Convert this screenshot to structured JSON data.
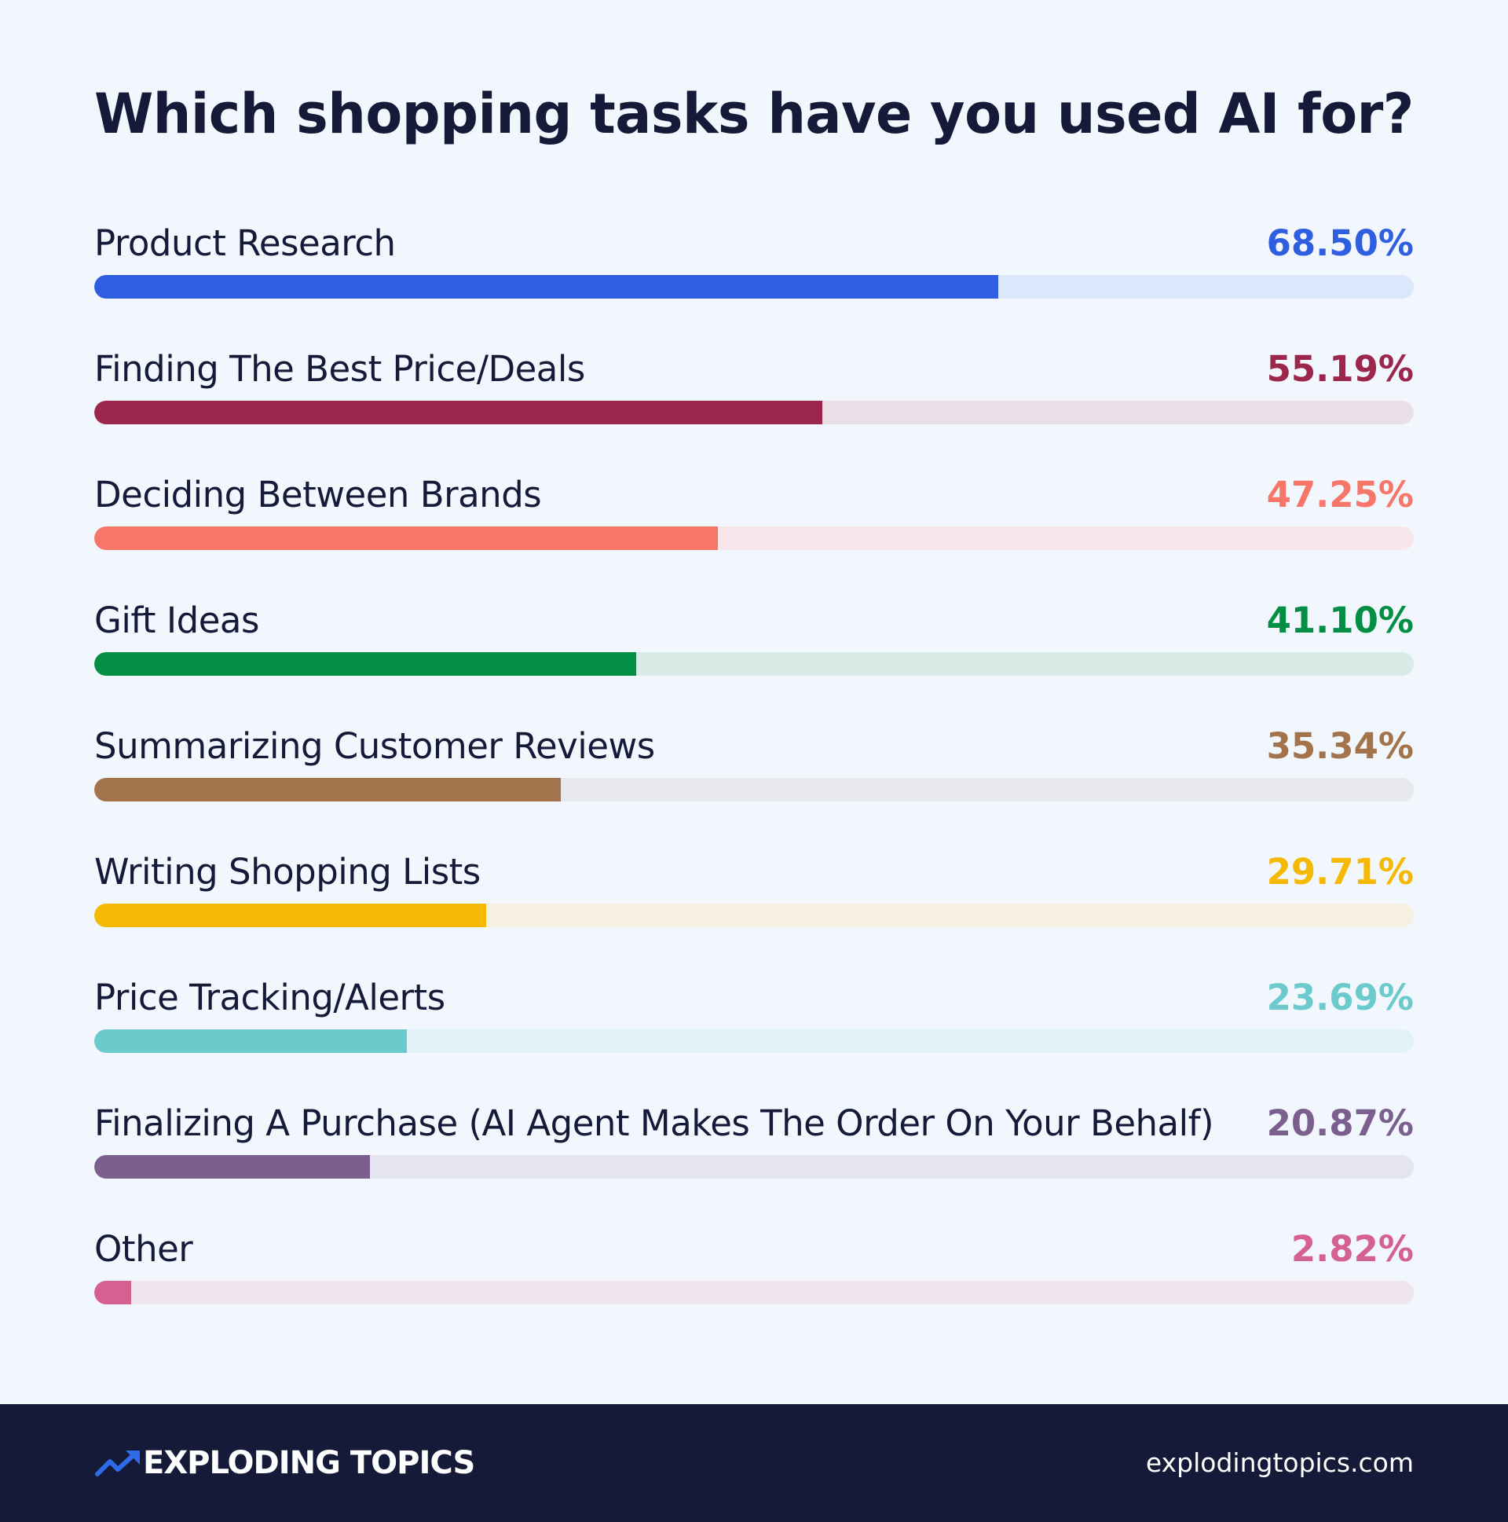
{
  "chart_data": {
    "type": "bar",
    "orientation": "horizontal",
    "title": "Which shopping tasks have you used AI for?",
    "categories": [
      "Product Research",
      "Finding The Best Price/Deals",
      "Deciding Between Brands",
      "Gift Ideas",
      "Summarizing Customer Reviews",
      "Writing Shopping Lists",
      "Price Tracking/Alerts",
      "Finalizing A Purchase (AI Agent Makes The Order On Your Behalf)",
      "Other"
    ],
    "values": [
      68.5,
      55.19,
      47.25,
      41.1,
      35.34,
      29.71,
      23.69,
      20.87,
      2.82
    ],
    "value_labels": [
      "68.50%",
      "55.19%",
      "47.25%",
      "41.10%",
      "35.34%",
      "29.71%",
      "23.69%",
      "20.87%",
      "2.82%"
    ],
    "xlim": [
      0,
      100
    ],
    "unit": "%",
    "grid": false,
    "colors": [
      "#2f5ee0",
      "#9c264c",
      "#f6766a",
      "#028f43",
      "#a3744b",
      "#f5b904",
      "#6ccacc",
      "#7a5f8f",
      "#d4618f"
    ],
    "track_colors": [
      "#dde7fb",
      "#ebdfe7",
      "#f8e6ea",
      "#d9ebe7",
      "#e8e9ec",
      "#f5f0e0",
      "#e3f2f7",
      "#e6e5ef",
      "#efe5ee"
    ]
  },
  "footer": {
    "brand_name": "EXPLODING TOPICS",
    "brand_icon": "trend-arrow-icon",
    "brand_color": "#2f6be8",
    "url": "explodingtopics.com",
    "background": "#141a38"
  }
}
